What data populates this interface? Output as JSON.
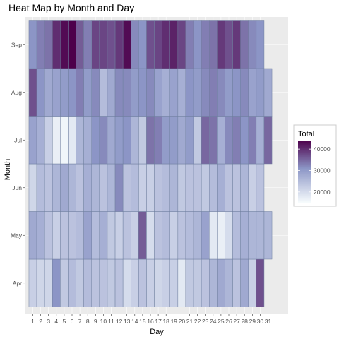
{
  "chart_data": {
    "type": "heatmap",
    "title": "Heat Map by Month and Day",
    "xlabel": "Day",
    "ylabel": "Month",
    "x_categories": [
      "1",
      "2",
      "3",
      "4",
      "5",
      "6",
      "7",
      "8",
      "9",
      "10",
      "11",
      "12",
      "13",
      "14",
      "15",
      "16",
      "17",
      "18",
      "19",
      "20",
      "21",
      "22",
      "23",
      "24",
      "25",
      "26",
      "27",
      "28",
      "29",
      "30",
      "31"
    ],
    "y_categories": [
      "Apr",
      "May",
      "Jun",
      "Jul",
      "Aug",
      "Sep"
    ],
    "values": {
      "Sep": [
        31000,
        33000,
        34000,
        40000,
        43000,
        44000,
        36000,
        33000,
        38000,
        38000,
        37000,
        39000,
        43000,
        32000,
        31000,
        37000,
        38000,
        40000,
        41000,
        38000,
        33000,
        31000,
        33000,
        34000,
        39000,
        37000,
        39000,
        34000,
        32000,
        31000,
        null
      ],
      "Aug": [
        37000,
        31000,
        28000,
        29000,
        30000,
        31000,
        33000,
        30000,
        32000,
        25000,
        28000,
        32000,
        32000,
        30000,
        31000,
        32000,
        29000,
        27000,
        29000,
        27000,
        31000,
        30000,
        32000,
        33000,
        32000,
        30000,
        31000,
        32000,
        29000,
        30000,
        28000
      ],
      "Jul": [
        29000,
        27000,
        22000,
        17000,
        16000,
        18000,
        26000,
        27000,
        31000,
        32000,
        28000,
        30000,
        31000,
        26000,
        23000,
        34000,
        33000,
        30000,
        30000,
        28000,
        30000,
        23000,
        35000,
        34000,
        27000,
        32000,
        33000,
        31000,
        33000,
        27000,
        35000
      ],
      "Jun": [
        21000,
        25000,
        24000,
        26000,
        28000,
        26000,
        24000,
        27000,
        26000,
        24000,
        26000,
        32000,
        24000,
        25000,
        22000,
        22000,
        24000,
        25000,
        26000,
        23000,
        24000,
        24000,
        23000,
        25000,
        27000,
        24000,
        24000,
        26000,
        22000,
        24000,
        null
      ],
      "May": [
        28000,
        27000,
        24000,
        22000,
        24000,
        24000,
        25000,
        29000,
        25000,
        27000,
        23000,
        22000,
        24000,
        22000,
        36000,
        20000,
        24000,
        25000,
        22000,
        24000,
        25000,
        26000,
        29000,
        18000,
        17000,
        20000,
        25000,
        27000,
        26000,
        26000,
        26000
      ],
      "Apr": [
        22000,
        21000,
        21000,
        31000,
        23000,
        25000,
        23000,
        25000,
        24000,
        24000,
        23000,
        24000,
        20000,
        22000,
        24000,
        22000,
        21000,
        22000,
        22000,
        18000,
        23000,
        23000,
        24000,
        26000,
        28000,
        26000,
        24000,
        28000,
        22000,
        37000,
        null
      ]
    },
    "legend": {
      "title": "Total",
      "ticks": [
        20000,
        30000,
        40000
      ],
      "min": 15000,
      "max": 44000,
      "placement": "right"
    },
    "colors": {
      "low": "#f7fcfd",
      "mid": "#8c96c6",
      "high": "#4d004b",
      "panel_background": "#ebebeb",
      "grid": "#ffffff",
      "cell_border": "#6f7f9f"
    },
    "grid": true
  }
}
